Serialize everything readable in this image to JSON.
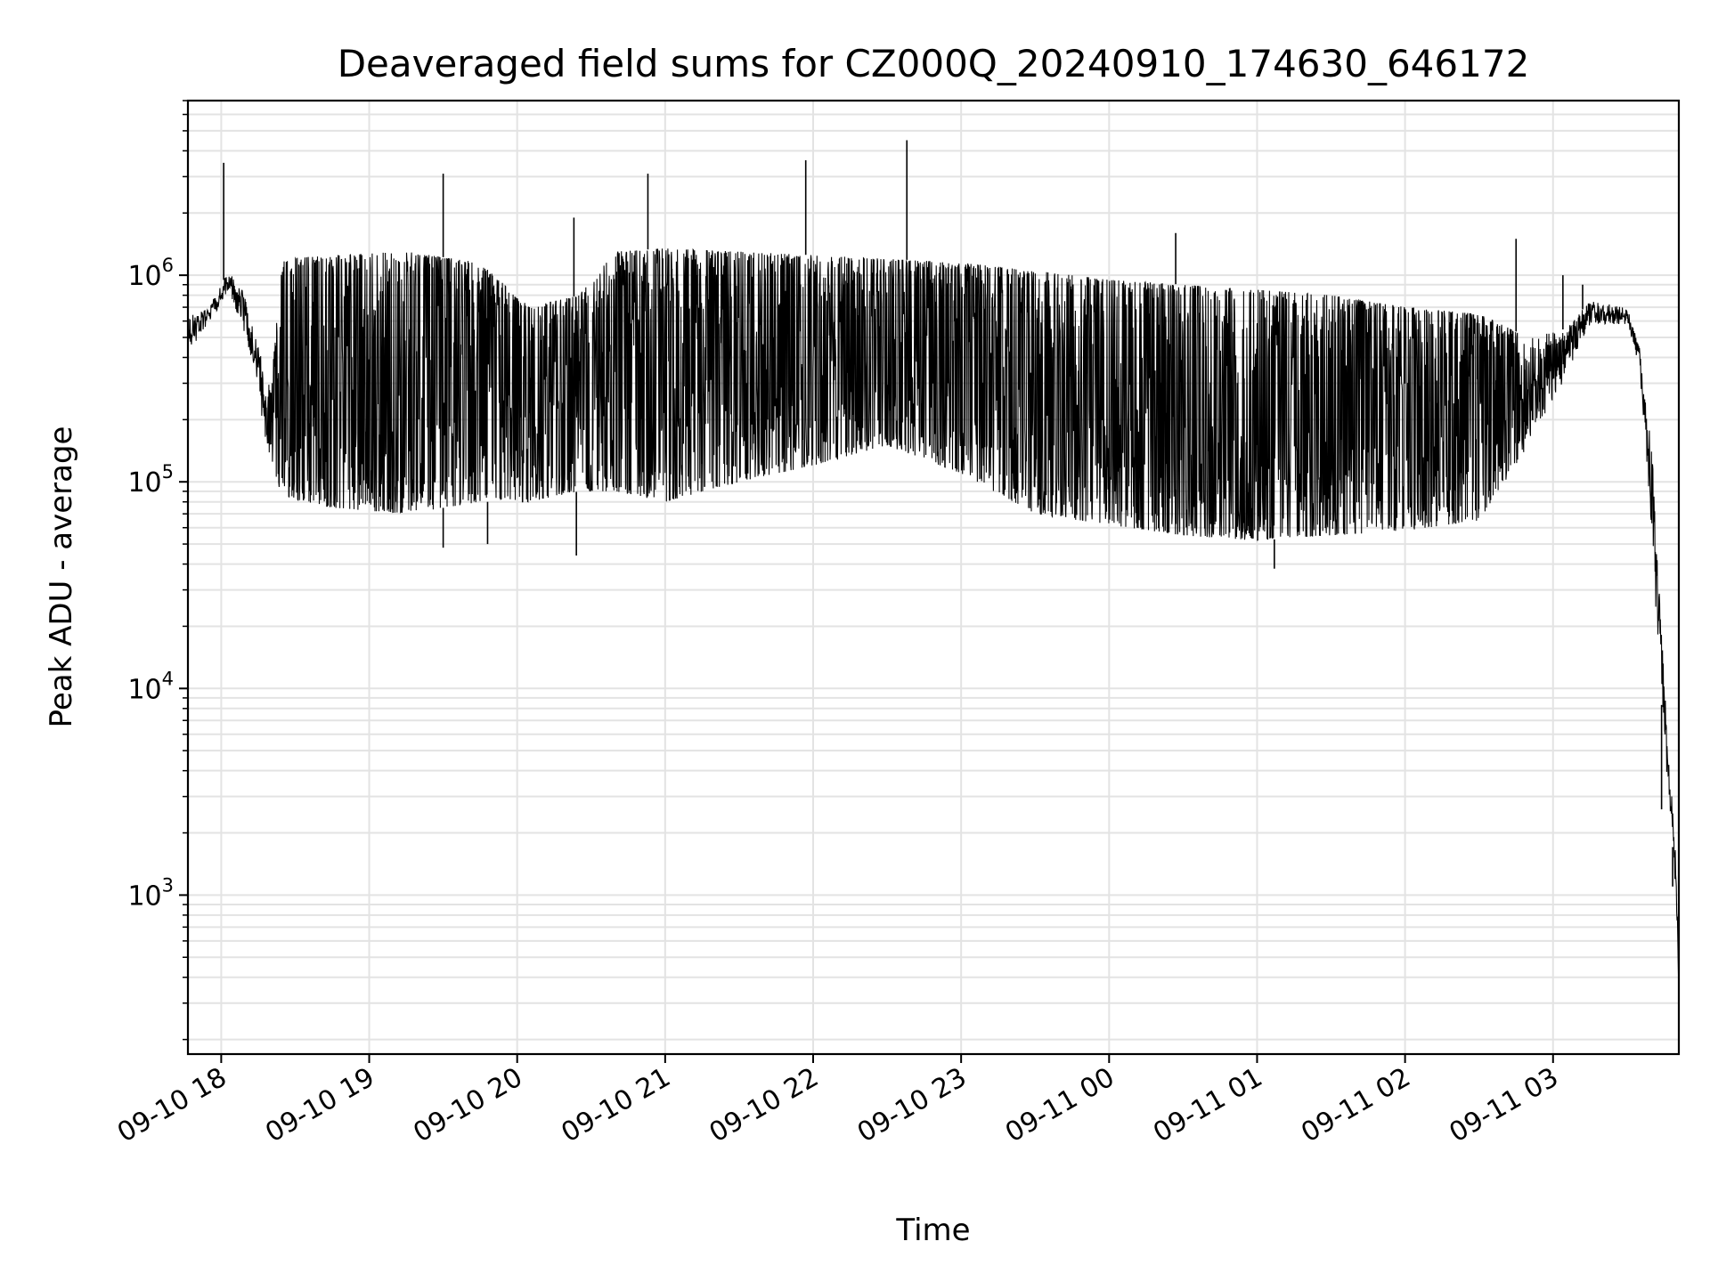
{
  "chart_data": {
    "type": "line",
    "title": "Deaveraged field sums for CZ000Q_20240910_174630_646172",
    "xlabel": "Time",
    "ylabel": "Peak ADU - average",
    "yscale": "log",
    "grid": true,
    "ylim": [
      170,
      7000000
    ],
    "xlim": [
      "2024-09-10 17:46:30",
      "2024-09-11 03:51:00"
    ],
    "x_ticks": [
      {
        "label": "09-10 18",
        "time": "2024-09-10 18:00"
      },
      {
        "label": "09-10 19",
        "time": "2024-09-10 19:00"
      },
      {
        "label": "09-10 20",
        "time": "2024-09-10 20:00"
      },
      {
        "label": "09-10 21",
        "time": "2024-09-10 21:00"
      },
      {
        "label": "09-10 22",
        "time": "2024-09-10 22:00"
      },
      {
        "label": "09-10 23",
        "time": "2024-09-10 23:00"
      },
      {
        "label": "09-11 00",
        "time": "2024-09-11 00:00"
      },
      {
        "label": "09-11 01",
        "time": "2024-09-11 01:00"
      },
      {
        "label": "09-11 02",
        "time": "2024-09-11 02:00"
      },
      {
        "label": "09-11 03",
        "time": "2024-09-11 03:00"
      }
    ],
    "y_ticks": [
      {
        "base": "10",
        "exp": "3",
        "value": 1000
      },
      {
        "base": "10",
        "exp": "4",
        "value": 10000
      },
      {
        "base": "10",
        "exp": "5",
        "value": 100000
      },
      {
        "base": "10",
        "exp": "6",
        "value": 1000000
      }
    ],
    "series": [
      {
        "color": "#000000",
        "envelope": [
          {
            "time": "2024-09-10 17:46:30",
            "low": 420000,
            "high": 650000
          },
          {
            "time": "2024-09-10 17:55",
            "low": 580000,
            "high": 700000
          },
          {
            "time": "2024-09-10 18:03",
            "low": 850000,
            "high": 1050000
          },
          {
            "time": "2024-09-10 18:10",
            "low": 500000,
            "high": 800000
          },
          {
            "time": "2024-09-10 18:15",
            "low": 250000,
            "high": 450000
          },
          {
            "time": "2024-09-10 18:20",
            "low": 120000,
            "high": 300000
          },
          {
            "time": "2024-09-10 18:25",
            "low": 85000,
            "high": 1200000
          },
          {
            "time": "2024-09-10 18:45",
            "low": 75000,
            "high": 1250000
          },
          {
            "time": "2024-09-10 19:15",
            "low": 70000,
            "high": 1300000
          },
          {
            "time": "2024-09-10 19:45",
            "low": 80000,
            "high": 1150000
          },
          {
            "time": "2024-09-10 20:05",
            "low": 80000,
            "high": 700000
          },
          {
            "time": "2024-09-10 20:25",
            "low": 90000,
            "high": 800000
          },
          {
            "time": "2024-09-10 20:40",
            "low": 90000,
            "high": 1300000
          },
          {
            "time": "2024-09-10 21:00",
            "low": 80000,
            "high": 1350000
          },
          {
            "time": "2024-09-10 21:30",
            "low": 100000,
            "high": 1300000
          },
          {
            "time": "2024-09-10 22:00",
            "low": 120000,
            "high": 1250000
          },
          {
            "time": "2024-09-10 22:30",
            "low": 150000,
            "high": 1200000
          },
          {
            "time": "2024-09-10 23:00",
            "low": 110000,
            "high": 1150000
          },
          {
            "time": "2024-09-10 23:30",
            "low": 70000,
            "high": 1050000
          },
          {
            "time": "2024-09-11 00:00",
            "low": 62000,
            "high": 950000
          },
          {
            "time": "2024-09-11 00:30",
            "low": 55000,
            "high": 900000
          },
          {
            "time": "2024-09-11 01:00",
            "low": 52000,
            "high": 850000
          },
          {
            "time": "2024-09-11 01:30",
            "low": 55000,
            "high": 800000
          },
          {
            "time": "2024-09-11 02:00",
            "low": 58000,
            "high": 700000
          },
          {
            "time": "2024-09-11 02:30",
            "low": 65000,
            "high": 650000
          },
          {
            "time": "2024-09-11 02:50",
            "low": 150000,
            "high": 500000
          },
          {
            "time": "2024-09-11 03:05",
            "low": 320000,
            "high": 550000
          },
          {
            "time": "2024-09-11 03:15",
            "low": 580000,
            "high": 750000
          },
          {
            "time": "2024-09-11 03:30",
            "low": 580000,
            "high": 700000
          },
          {
            "time": "2024-09-11 03:35",
            "low": 350000,
            "high": 450000
          },
          {
            "time": "2024-09-11 03:40",
            "low": 60000,
            "high": 150000
          },
          {
            "time": "2024-09-11 03:43",
            "low": 12000,
            "high": 30000
          },
          {
            "time": "2024-09-11 03:46",
            "low": 4000,
            "high": 7000
          },
          {
            "time": "2024-09-11 03:48",
            "low": 2200,
            "high": 3500
          },
          {
            "time": "2024-09-11 03:50",
            "low": 800,
            "high": 1400
          },
          {
            "time": "2024-09-11 03:51",
            "low": 310,
            "high": 500
          }
        ],
        "spikes": [
          {
            "time": "2024-09-10 18:01:00",
            "value": 3500000
          },
          {
            "time": "2024-09-10 19:30:00",
            "value": 3100000
          },
          {
            "time": "2024-09-10 20:23:00",
            "value": 1900000
          },
          {
            "time": "2024-09-10 20:53:00",
            "value": 3100000
          },
          {
            "time": "2024-09-10 21:57:00",
            "value": 3600000
          },
          {
            "time": "2024-09-10 22:38:00",
            "value": 4500000
          },
          {
            "time": "2024-09-11 00:27:00",
            "value": 1600000
          },
          {
            "time": "2024-09-11 02:45:00",
            "value": 1500000
          },
          {
            "time": "2024-09-11 03:04:00",
            "value": 1000000
          },
          {
            "time": "2024-09-11 03:12:00",
            "value": 900000
          }
        ],
        "dips": [
          {
            "time": "2024-09-10 19:30:00",
            "value": 48000
          },
          {
            "time": "2024-09-10 19:48:00",
            "value": 50000
          },
          {
            "time": "2024-09-10 20:24:00",
            "value": 44000
          },
          {
            "time": "2024-09-11 01:07:00",
            "value": 38000
          },
          {
            "time": "2024-09-11 03:44:00",
            "value": 2600
          },
          {
            "time": "2024-09-11 03:48:30",
            "value": 1100
          }
        ]
      }
    ]
  }
}
